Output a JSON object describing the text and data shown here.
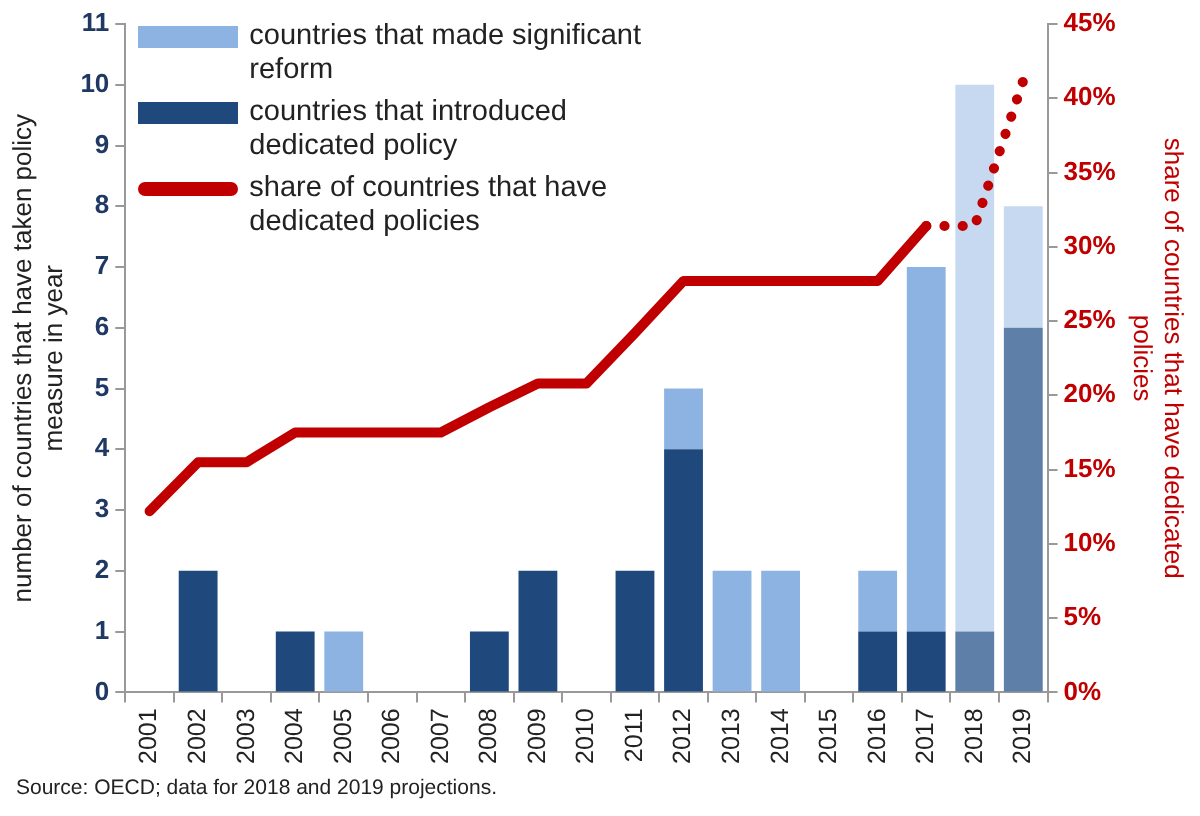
{
  "chart_data": {
    "type": "bar",
    "stacked": true,
    "categories": [
      "2001",
      "2002",
      "2003",
      "2004",
      "2005",
      "2006",
      "2007",
      "2008",
      "2009",
      "2010",
      "2011",
      "2012",
      "2013",
      "2014",
      "2015",
      "2016",
      "2017",
      "2018",
      "2019"
    ],
    "series": [
      {
        "name": "countries that introduced dedicated policy",
        "color": "#1f497d",
        "colors": [
          "#1f497d",
          "#1f497d",
          "#1f497d",
          "#1f497d",
          "#1f497d",
          "#1f497d",
          "#1f497d",
          "#1f497d",
          "#1f497d",
          "#1f497d",
          "#1f497d",
          "#1f497d",
          "#1f497d",
          "#1f497d",
          "#1f497d",
          "#1f497d",
          "#1f497d",
          "#5d7fa8",
          "#5d7fa8"
        ],
        "values": [
          0,
          2,
          0,
          1,
          0,
          0,
          0,
          1,
          2,
          0,
          2,
          4,
          0,
          0,
          0,
          1,
          1,
          1,
          6
        ]
      },
      {
        "name": "countries that made significant reform",
        "color": "#8db3e2",
        "colors": [
          "#8db3e2",
          "#8db3e2",
          "#8db3e2",
          "#8db3e2",
          "#8db3e2",
          "#8db3e2",
          "#8db3e2",
          "#8db3e2",
          "#8db3e2",
          "#8db3e2",
          "#8db3e2",
          "#8db3e2",
          "#8db3e2",
          "#8db3e2",
          "#8db3e2",
          "#8db3e2",
          "#8db3e2",
          "#c6d9f1",
          "#c6d9f1"
        ],
        "values": [
          0,
          0,
          0,
          0,
          1,
          0,
          0,
          0,
          0,
          0,
          0,
          1,
          2,
          2,
          0,
          1,
          6,
          9,
          2
        ]
      },
      {
        "name": "share of countries that have dedicated policies",
        "type": "line",
        "axis": "y2",
        "color": "#c00000",
        "line_style": "solid",
        "values": [
          12.2,
          15.5,
          15.5,
          17.5,
          17.5,
          17.5,
          17.5,
          19.2,
          20.8,
          20.8,
          24.2,
          27.7,
          27.7,
          27.7,
          27.7,
          27.7,
          31.4,
          null,
          null
        ]
      },
      {
        "type": "line",
        "axis": "y2",
        "color": "#c00000",
        "line_style": "dotted",
        "values": [
          null,
          null,
          null,
          null,
          null,
          null,
          null,
          null,
          null,
          null,
          null,
          null,
          null,
          null,
          null,
          null,
          31.4,
          31.4,
          41.2
        ]
      }
    ],
    "ylabel": "number of countries that have taken policy measure in year",
    "y2label": "share of countries that have dedicated policies",
    "ylim": [
      0,
      11
    ],
    "yticks": [
      0,
      1,
      2,
      3,
      4,
      5,
      6,
      7,
      8,
      9,
      10,
      11
    ],
    "y2lim": [
      0,
      45
    ],
    "y2ticks": [
      {
        "value": 0,
        "label": "0%"
      },
      {
        "value": 5,
        "label": "5%"
      },
      {
        "value": 10,
        "label": "10%"
      },
      {
        "value": 15,
        "label": "15%"
      },
      {
        "value": 20,
        "label": "20%"
      },
      {
        "value": 25,
        "label": "25%"
      },
      {
        "value": 30,
        "label": "30%"
      },
      {
        "value": 35,
        "label": "35%"
      },
      {
        "value": 40,
        "label": "40%"
      },
      {
        "value": 45,
        "label": "45%"
      }
    ],
    "grid": false,
    "legend": "top left",
    "marker": "none",
    "annotations": [
      "Source: OECD; data for 2018 and 2019 projections."
    ]
  }
}
